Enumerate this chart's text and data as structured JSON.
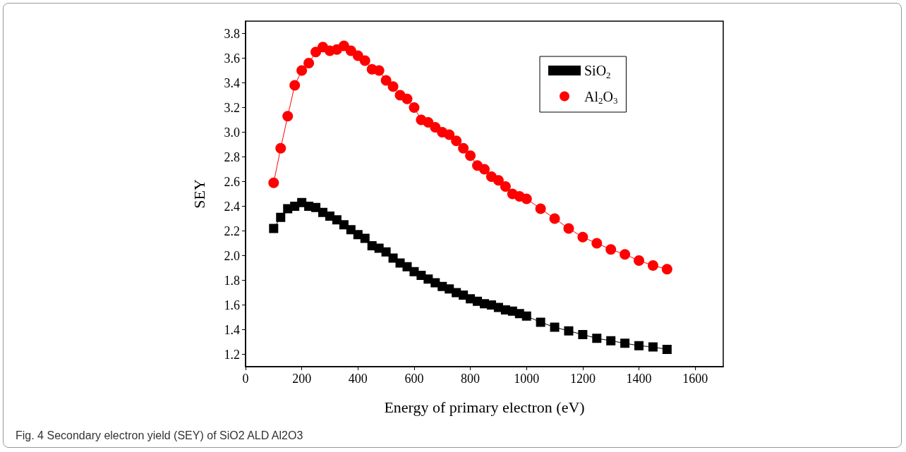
{
  "chart_data": {
    "type": "line",
    "xlabel": "Energy of primary electron (eV)",
    "ylabel": "SEY",
    "x": [
      100,
      125,
      150,
      175,
      200,
      225,
      250,
      275,
      300,
      325,
      350,
      375,
      400,
      425,
      450,
      475,
      500,
      525,
      550,
      575,
      600,
      625,
      650,
      675,
      700,
      725,
      750,
      775,
      800,
      825,
      850,
      875,
      900,
      925,
      950,
      975,
      1000,
      1050,
      1100,
      1150,
      1200,
      1250,
      1300,
      1350,
      1400,
      1450,
      1500
    ],
    "series": [
      {
        "name": "SiO$_{2}$",
        "color": "#000000",
        "marker": "square",
        "values": [
          2.22,
          2.31,
          2.38,
          2.4,
          2.43,
          2.4,
          2.39,
          2.35,
          2.32,
          2.29,
          2.25,
          2.21,
          2.17,
          2.14,
          2.08,
          2.06,
          2.03,
          1.98,
          1.94,
          1.91,
          1.87,
          1.84,
          1.81,
          1.78,
          1.75,
          1.73,
          1.7,
          1.68,
          1.65,
          1.63,
          1.61,
          1.6,
          1.58,
          1.56,
          1.55,
          1.53,
          1.51,
          1.46,
          1.42,
          1.39,
          1.36,
          1.33,
          1.31,
          1.29,
          1.27,
          1.26,
          1.24
        ]
      },
      {
        "name": "Al$_{2}$O$_{3}$",
        "color": "#ff0000",
        "marker": "circle",
        "values": [
          2.59,
          2.87,
          3.13,
          3.38,
          3.5,
          3.56,
          3.65,
          3.69,
          3.66,
          3.67,
          3.7,
          3.66,
          3.62,
          3.58,
          3.51,
          3.5,
          3.42,
          3.37,
          3.3,
          3.27,
          3.2,
          3.1,
          3.08,
          3.04,
          3.0,
          2.98,
          2.93,
          2.87,
          2.81,
          2.73,
          2.7,
          2.64,
          2.61,
          2.56,
          2.5,
          2.48,
          2.46,
          2.38,
          2.3,
          2.22,
          2.15,
          2.1,
          2.05,
          2.01,
          1.96,
          1.92,
          1.89
        ]
      }
    ],
    "xlim": [
      0,
      1700
    ],
    "xticks": [
      0,
      200,
      400,
      600,
      800,
      1000,
      1200,
      1400,
      1600
    ],
    "ylim": [
      1.1,
      3.9
    ],
    "yticks": [
      1.2,
      1.4,
      1.6,
      1.8,
      {
        "value": 2,
        "label": "2.0"
      },
      2.2,
      2.4,
      2.6,
      2.8,
      {
        "value": 3,
        "label": "3.0"
      },
      3.2,
      3.4,
      3.6,
      3.8
    ],
    "grid": false,
    "legend": "top right",
    "line_style": "solid",
    "annotations": [
      "Fig. 4 Secondary electron yield (SEY) of SiO2 ALD Al2O3"
    ]
  }
}
